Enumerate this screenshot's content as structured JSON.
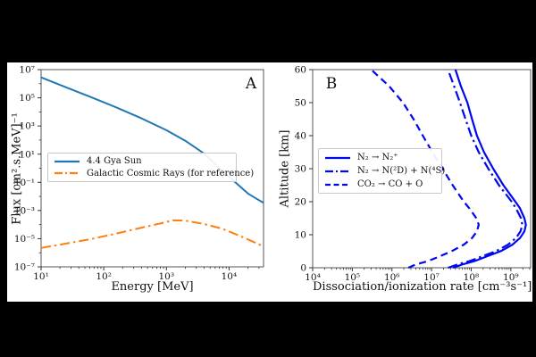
{
  "figure": {
    "panel_a_label": "A",
    "panel_b_label": "B",
    "background_color": "#000000",
    "plot_background_color": "#ffffff",
    "spine_color": "#555555",
    "tick_text_color": "#111111"
  },
  "chart_data": [
    {
      "type": "line",
      "panel": "A",
      "title": "",
      "xlabel": "Energy [MeV]",
      "ylabel": "Flux [cm².s.MeV]⁻¹",
      "xscale": "log",
      "yscale": "log",
      "xlim": [
        10,
        35500
      ],
      "ylim": [
        1e-07,
        10000000.0
      ],
      "grid": false,
      "legend_position": "center-left",
      "xticks": [
        {
          "v": 10,
          "label": "10¹"
        },
        {
          "v": 100,
          "label": "10²"
        },
        {
          "v": 1000,
          "label": "10³"
        },
        {
          "v": 10000,
          "label": "10⁴"
        }
      ],
      "yticks": [
        {
          "v": 10000000.0,
          "label": "10⁷"
        },
        {
          "v": 100000.0,
          "label": "10⁵"
        },
        {
          "v": 1000.0,
          "label": "10³"
        },
        {
          "v": 10.0,
          "label": "10¹"
        },
        {
          "v": 0.1,
          "label": "10⁻¹"
        },
        {
          "v": 0.001,
          "label": "10⁻³"
        },
        {
          "v": 1e-05,
          "label": "10⁻⁵"
        },
        {
          "v": 1e-07,
          "label": "10⁻⁷"
        }
      ],
      "series": [
        {
          "name": "4.4 Gya Sun",
          "color": "#1f77b4",
          "style": "solid",
          "points": [
            [
              10,
              2800000.0
            ],
            [
              25,
              560000.0
            ],
            [
              63,
              110000.0
            ],
            [
              158,
              21000.0
            ],
            [
              400,
              3500.0
            ],
            [
              1000,
              500.0
            ],
            [
              2000,
              90
            ],
            [
              4000,
              11
            ],
            [
              7900,
              0.6
            ],
            [
              12600,
              0.1
            ],
            [
              20000,
              0.016
            ],
            [
              28200,
              0.0063
            ],
            [
              35500,
              0.0035
            ]
          ]
        },
        {
          "name": "Galactic Cosmic Rays (for reference)",
          "color": "#ff7f0e",
          "style": "dashdot",
          "points": [
            [
              10,
              2.2e-06
            ],
            [
              25,
              4.5e-06
            ],
            [
              63,
              9.5e-06
            ],
            [
              158,
              2.3e-05
            ],
            [
              400,
              6e-05
            ],
            [
              800,
              0.00012
            ],
            [
              1260,
              0.0002
            ],
            [
              2000,
              0.00019
            ],
            [
              4000,
              0.00011
            ],
            [
              7900,
              5e-05
            ],
            [
              15800,
              1.4e-05
            ],
            [
              28200,
              4.5e-06
            ],
            [
              35500,
              2.8e-06
            ]
          ]
        }
      ]
    },
    {
      "type": "line",
      "panel": "B",
      "title": "",
      "xlabel": "Dissociation/ionization rate [cm⁻³s⁻¹]",
      "ylabel": "Altitude [km]",
      "xscale": "log",
      "yscale": "linear",
      "xlim": [
        10000.0,
        3160000000.0
      ],
      "ylim": [
        0,
        60
      ],
      "grid": false,
      "legend_position": "center-left",
      "xticks": [
        {
          "v": 10000.0,
          "label": "10⁴"
        },
        {
          "v": 100000.0,
          "label": "10⁵"
        },
        {
          "v": 1000000.0,
          "label": "10⁶"
        },
        {
          "v": 10000000.0,
          "label": "10⁷"
        },
        {
          "v": 100000000.0,
          "label": "10⁸"
        },
        {
          "v": 1000000000.0,
          "label": "10⁹"
        }
      ],
      "yticks": [
        {
          "v": 0,
          "label": "0"
        },
        {
          "v": 10,
          "label": "10"
        },
        {
          "v": 20,
          "label": "20"
        },
        {
          "v": 30,
          "label": "30"
        },
        {
          "v": 40,
          "label": "40"
        },
        {
          "v": 50,
          "label": "50"
        },
        {
          "v": 60,
          "label": "60"
        }
      ],
      "series": [
        {
          "name": "N₂ → N₂⁺",
          "color": "#0009ee",
          "style": "solid",
          "points": [
            [
              35000000.0,
              0
            ],
            [
              60000000.0,
              1
            ],
            [
              120000000.0,
              2
            ],
            [
              200000000.0,
              3
            ],
            [
              550000000.0,
              5
            ],
            [
              1100000000.0,
              7
            ],
            [
              1700000000.0,
              9
            ],
            [
              2200000000.0,
              11
            ],
            [
              2400000000.0,
              13
            ],
            [
              2200000000.0,
              15
            ],
            [
              1700000000.0,
              18
            ],
            [
              1300000000.0,
              20
            ],
            [
              650000000.0,
              25
            ],
            [
              360000000.0,
              30
            ],
            [
              210000000.0,
              35
            ],
            [
              140000000.0,
              40
            ],
            [
              105000000.0,
              45
            ],
            [
              80000000.0,
              50
            ],
            [
              55000000.0,
              55
            ],
            [
              40000000.0,
              60
            ]
          ]
        },
        {
          "name": "N₂ → N(²D) + N(⁴S)",
          "color": "#0009ee",
          "style": "dashdot",
          "points": [
            [
              26000000.0,
              0
            ],
            [
              45000000.0,
              1
            ],
            [
              90000000.0,
              2
            ],
            [
              150000000.0,
              3
            ],
            [
              420000000.0,
              5
            ],
            [
              850000000.0,
              7
            ],
            [
              1350000000.0,
              9
            ],
            [
              1750000000.0,
              11
            ],
            [
              1950000000.0,
              13
            ],
            [
              1800000000.0,
              15
            ],
            [
              1350000000.0,
              18
            ],
            [
              1050000000.0,
              20
            ],
            [
              500000000.0,
              25
            ],
            [
              270000000.0,
              30
            ],
            [
              155000000.0,
              35
            ],
            [
              100000000.0,
              40
            ],
            [
              72000000.0,
              45
            ],
            [
              52000000.0,
              50
            ],
            [
              37000000.0,
              55
            ],
            [
              26000000.0,
              60
            ]
          ]
        },
        {
          "name": "CO₂ → CO + O",
          "color": "#0009ee",
          "style": "dashed",
          "points": [
            [
              2600000.0,
              0
            ],
            [
              4000000.0,
              1
            ],
            [
              8000000.0,
              2
            ],
            [
              13000000.0,
              3
            ],
            [
              32000000.0,
              5
            ],
            [
              65000000.0,
              7
            ],
            [
              105000000.0,
              9
            ],
            [
              140000000.0,
              11
            ],
            [
              155000000.0,
              13
            ],
            [
              135000000.0,
              15
            ],
            [
              90000000.0,
              18
            ],
            [
              65000000.0,
              20
            ],
            [
              34000000.0,
              25
            ],
            [
              19000000.0,
              30
            ],
            [
              10500000.0,
              35
            ],
            [
              6000000.0,
              40
            ],
            [
              3500000.0,
              45
            ],
            [
              1900000.0,
              50
            ],
            [
              850000.0,
              55
            ],
            [
              300000.0,
              60
            ]
          ]
        }
      ]
    }
  ]
}
